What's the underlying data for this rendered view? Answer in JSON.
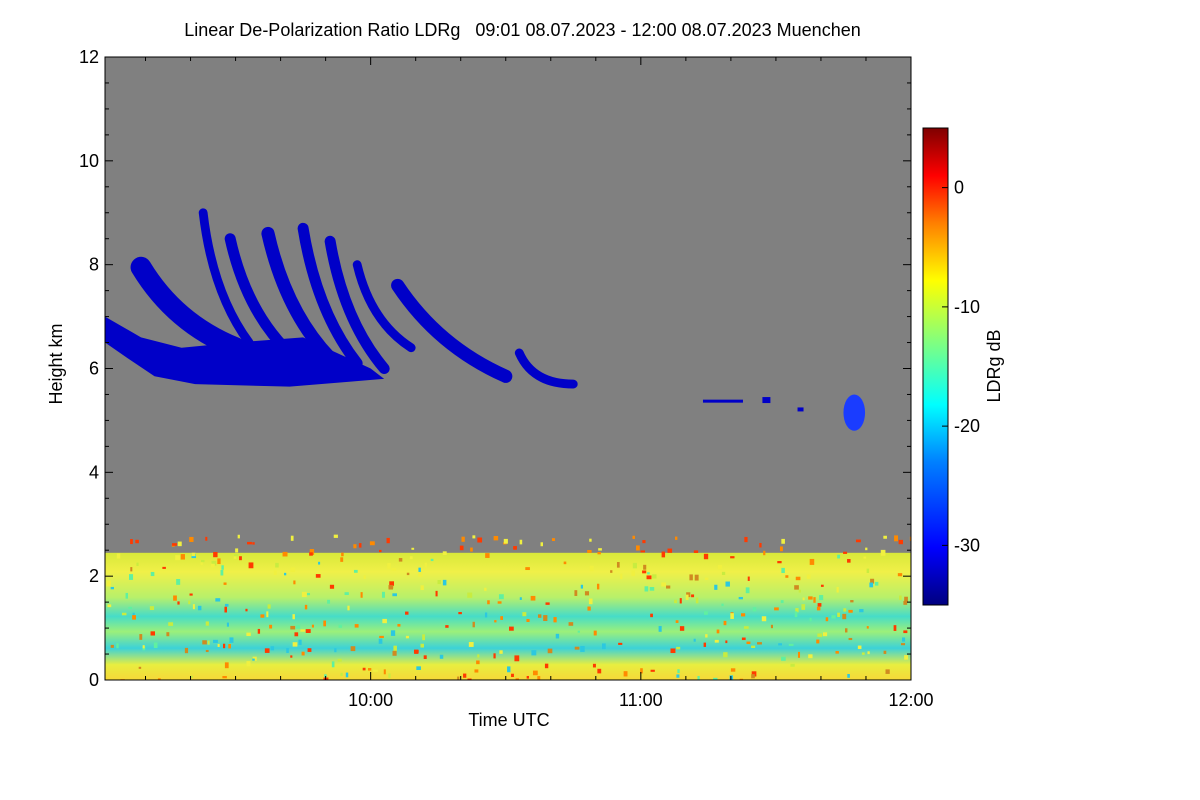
{
  "chart_data": {
    "type": "heatmap",
    "title": "Linear De-Polarization Ratio LDRg   09:01 08.07.2023 - 12:00 08.07.2023 Muenchen",
    "xlabel": "Time UTC",
    "ylabel": "Height km",
    "colorbar_label": "LDRg dB",
    "x_range_hours": [
      9.0167,
      12.0
    ],
    "x_ticks": [
      {
        "value": 10.0,
        "label": "10:00"
      },
      {
        "value": 11.0,
        "label": "11:00"
      },
      {
        "value": 12.0,
        "label": "12:00"
      }
    ],
    "y_range_km": [
      0,
      12
    ],
    "y_ticks": [
      0,
      2,
      4,
      6,
      8,
      10,
      12
    ],
    "colorbar_range_db": [
      -35,
      5
    ],
    "colorbar_ticks": [
      0,
      -10,
      -20,
      -30
    ],
    "background_color": "#808080",
    "features": [
      {
        "name": "cirrus fall streaks",
        "time_start": 9.0167,
        "time_end": 10.75,
        "height_km": [
          5.6,
          9.1
        ],
        "ldr_db": -31
      },
      {
        "name": "small cloud patch",
        "time_start": 11.75,
        "time_end": 11.83,
        "height_km": [
          4.8,
          5.5
        ],
        "ldr_db": -30
      },
      {
        "name": "boundary layer aerosol",
        "time_start": 9.0167,
        "time_end": 12.0,
        "height_km": [
          0,
          2.8
        ],
        "ldr_db_range": [
          -25,
          -5
        ]
      }
    ]
  }
}
